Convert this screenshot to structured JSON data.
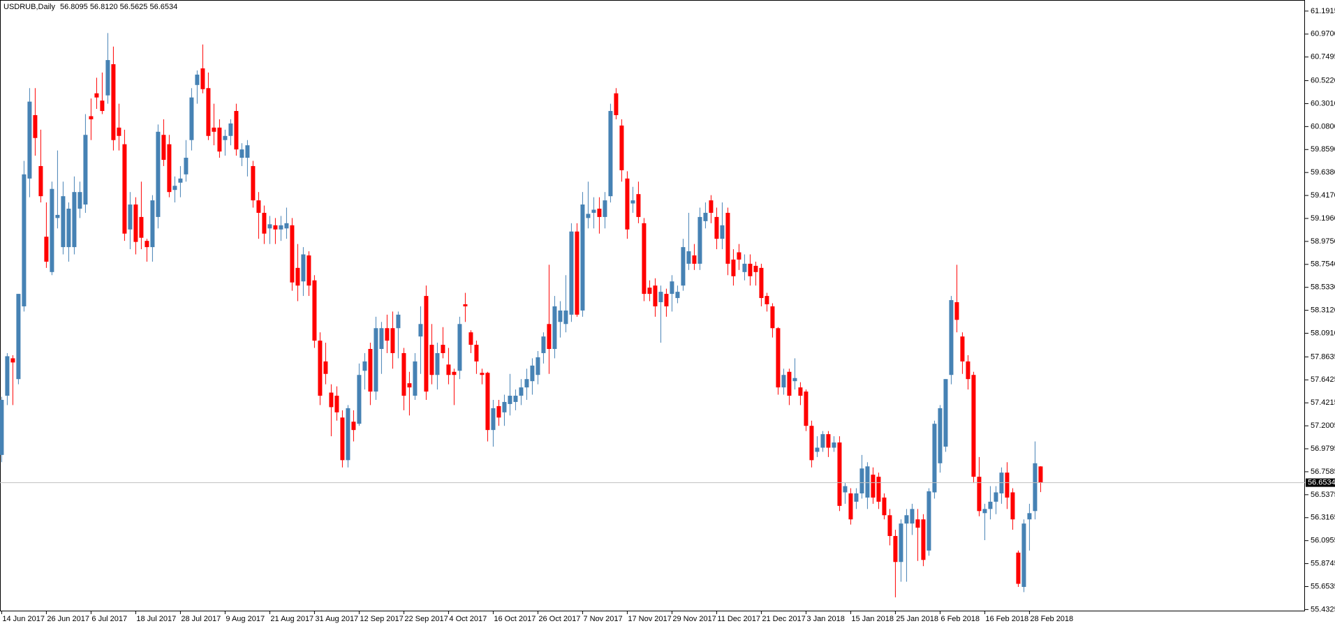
{
  "chart_data": {
    "type": "candlestick",
    "title": "USDRUB,Daily",
    "header": "56.8095 56.8120 56.5625 56.6534",
    "up_color": "#4682b4",
    "down_color": "#ff0000",
    "last_price": 56.6534,
    "last_price_color": "#c0c0c0",
    "ylim": [
      55.415,
      61.298
    ],
    "yticks": [
      61.1915,
      {
        "value": 60.97,
        "label": "60.9700"
      },
      60.7495,
      {
        "value": 60.522,
        "label": "60.5220"
      },
      {
        "value": 60.301,
        "label": "60.3010"
      },
      {
        "value": 60.08,
        "label": "60.0800"
      },
      {
        "value": 59.859,
        "label": "59.8590"
      },
      {
        "value": 59.638,
        "label": "59.6380"
      },
      {
        "value": 59.417,
        "label": "59.4170"
      },
      {
        "value": 59.196,
        "label": "59.1960"
      },
      {
        "value": 58.975,
        "label": "58.9750"
      },
      {
        "value": 58.754,
        "label": "58.7540"
      },
      {
        "value": 58.533,
        "label": "58.5330"
      },
      {
        "value": 58.312,
        "label": "58.3120"
      },
      {
        "value": 58.091,
        "label": "58.0910"
      },
      57.8635,
      57.6425,
      57.4215,
      57.2005,
      56.9795,
      56.7585,
      56.5375,
      56.3165,
      56.0955,
      55.8745,
      55.6535,
      55.4325
    ],
    "categories": [
      "14 Jun 2017",
      null,
      null,
      null,
      null,
      null,
      null,
      null,
      "26 Jun 2017",
      null,
      null,
      null,
      null,
      null,
      null,
      null,
      "6 Jul 2017",
      null,
      null,
      null,
      null,
      null,
      null,
      null,
      "18 Jul 2017",
      null,
      null,
      null,
      null,
      null,
      null,
      null,
      "28 Jul 2017",
      null,
      null,
      null,
      null,
      null,
      null,
      null,
      "9 Aug 2017",
      null,
      null,
      null,
      null,
      null,
      null,
      null,
      "21 Aug 2017",
      null,
      null,
      null,
      null,
      null,
      null,
      null,
      "31 Aug 2017",
      null,
      null,
      null,
      null,
      null,
      null,
      null,
      "12 Sep 2017",
      null,
      null,
      null,
      null,
      null,
      null,
      null,
      "22 Sep 2017",
      null,
      null,
      null,
      null,
      null,
      null,
      null,
      "4 Oct 2017",
      null,
      null,
      null,
      null,
      null,
      null,
      null,
      "16 Oct 2017",
      null,
      null,
      null,
      null,
      null,
      null,
      null,
      "26 Oct 2017",
      null,
      null,
      null,
      null,
      null,
      null,
      null,
      "7 Nov 2017",
      null,
      null,
      null,
      null,
      null,
      null,
      null,
      "17 Nov 2017",
      null,
      null,
      null,
      null,
      null,
      null,
      null,
      "29 Nov 2017",
      null,
      null,
      null,
      null,
      null,
      null,
      null,
      "11 Dec 2017",
      null,
      null,
      null,
      null,
      null,
      null,
      null,
      "21 Dec 2017",
      null,
      null,
      null,
      null,
      null,
      null,
      null,
      "3 Jan 2018",
      null,
      null,
      null,
      null,
      null,
      null,
      null,
      "15 Jan 2018",
      null,
      null,
      null,
      null,
      null,
      null,
      null,
      "25 Jan 2018",
      null,
      null,
      null,
      null,
      null,
      null,
      null,
      "6 Feb 2018",
      null,
      null,
      null,
      null,
      null,
      null,
      null,
      "16 Feb 2018",
      null,
      null,
      null,
      null,
      null,
      null,
      null,
      "28 Feb 2018",
      null,
      null
    ],
    "ohlc": [
      [
        56.92,
        57.48,
        56.85,
        57.45
      ],
      [
        57.49,
        57.9,
        57.4,
        57.87
      ],
      [
        57.85,
        57.88,
        57.4,
        57.81
      ],
      [
        57.65,
        58.47,
        57.6,
        58.47
      ],
      [
        58.35,
        59.75,
        58.3,
        59.62
      ],
      [
        59.58,
        60.45,
        59.4,
        60.32
      ],
      [
        60.19,
        60.45,
        59.8,
        59.97
      ],
      [
        59.7,
        60.05,
        59.35,
        59.41
      ],
      [
        59.02,
        59.35,
        58.72,
        58.78
      ],
      [
        58.68,
        59.55,
        58.65,
        59.48
      ],
      [
        59.2,
        59.85,
        59.1,
        59.23
      ],
      [
        58.92,
        59.55,
        58.85,
        59.41
      ],
      [
        58.92,
        59.35,
        58.78,
        59.29
      ],
      [
        58.92,
        59.6,
        58.85,
        59.45
      ],
      [
        59.29,
        59.55,
        59.2,
        59.45
      ],
      [
        59.33,
        60.2,
        59.25,
        60.0
      ],
      [
        60.18,
        60.35,
        59.95,
        60.15
      ],
      [
        60.4,
        60.55,
        60.25,
        60.36
      ],
      [
        60.33,
        60.6,
        60.2,
        60.23
      ],
      [
        60.38,
        60.98,
        60.3,
        60.72
      ],
      [
        60.68,
        60.85,
        59.85,
        59.95
      ],
      [
        60.07,
        60.3,
        59.85,
        59.99
      ],
      [
        59.91,
        60.05,
        58.98,
        59.05
      ],
      [
        59.09,
        59.45,
        58.9,
        59.33
      ],
      [
        59.33,
        59.4,
        58.85,
        58.97
      ],
      [
        59.21,
        59.55,
        58.9,
        59.01
      ],
      [
        58.98,
        59.0,
        58.78,
        58.92
      ],
      [
        58.92,
        59.42,
        58.78,
        59.37
      ],
      [
        59.21,
        60.1,
        59.1,
        60.03
      ],
      [
        60.0,
        60.15,
        59.7,
        59.76
      ],
      [
        59.91,
        60.0,
        59.4,
        59.45
      ],
      [
        59.47,
        59.6,
        59.35,
        59.51
      ],
      [
        59.54,
        59.7,
        59.4,
        59.58
      ],
      [
        59.62,
        59.95,
        59.55,
        59.78
      ],
      [
        59.95,
        60.45,
        59.85,
        60.36
      ],
      [
        60.48,
        60.62,
        60.3,
        60.58
      ],
      [
        60.64,
        60.87,
        60.4,
        60.44
      ],
      [
        60.45,
        60.6,
        59.95,
        59.99
      ],
      [
        60.07,
        60.3,
        59.9,
        60.03
      ],
      [
        60.07,
        60.15,
        59.78,
        59.84
      ],
      [
        59.95,
        60.05,
        59.8,
        59.99
      ],
      [
        59.99,
        60.15,
        59.9,
        60.11
      ],
      [
        60.23,
        60.3,
        59.8,
        59.86
      ],
      [
        59.78,
        59.92,
        59.7,
        59.86
      ],
      [
        59.78,
        59.95,
        59.6,
        59.9
      ],
      [
        59.7,
        59.75,
        59.3,
        59.37
      ],
      [
        59.37,
        59.45,
        59.0,
        59.25
      ],
      [
        59.25,
        59.32,
        58.95,
        59.05
      ],
      [
        59.1,
        59.22,
        58.95,
        59.14
      ],
      [
        59.13,
        59.2,
        58.95,
        59.09
      ],
      [
        59.09,
        59.22,
        58.98,
        59.13
      ],
      [
        59.1,
        59.3,
        59.0,
        59.15
      ],
      [
        59.13,
        59.2,
        58.5,
        58.58
      ],
      [
        58.72,
        58.95,
        58.4,
        58.55
      ],
      [
        58.59,
        58.92,
        58.45,
        58.85
      ],
      [
        58.84,
        58.88,
        58.45,
        58.55
      ],
      [
        58.6,
        58.65,
        57.95,
        58.02
      ],
      [
        58.02,
        58.1,
        57.4,
        57.49
      ],
      [
        57.82,
        58.0,
        57.6,
        57.7
      ],
      [
        57.52,
        57.6,
        57.1,
        57.38
      ],
      [
        57.49,
        57.58,
        57.25,
        57.33
      ],
      [
        57.28,
        57.35,
        56.8,
        56.87
      ],
      [
        56.87,
        57.4,
        56.8,
        57.37
      ],
      [
        57.24,
        57.35,
        57.05,
        57.16
      ],
      [
        57.22,
        57.8,
        57.2,
        57.69
      ],
      [
        57.73,
        57.9,
        57.55,
        57.82
      ],
      [
        57.94,
        58.0,
        57.4,
        57.53
      ],
      [
        57.53,
        58.25,
        57.45,
        58.14
      ],
      [
        57.94,
        58.2,
        57.7,
        58.14
      ],
      [
        58.14,
        58.27,
        57.9,
        58.02
      ],
      [
        58.14,
        58.3,
        57.75,
        57.9
      ],
      [
        58.14,
        58.3,
        57.85,
        58.27
      ],
      [
        57.9,
        57.95,
        57.35,
        57.49
      ],
      [
        57.61,
        57.72,
        57.3,
        57.57
      ],
      [
        57.49,
        57.9,
        57.45,
        57.82
      ],
      [
        58.06,
        58.35,
        57.7,
        58.18
      ],
      [
        58.45,
        58.55,
        57.45,
        57.53
      ],
      [
        57.98,
        58.18,
        57.6,
        57.69
      ],
      [
        57.69,
        58.0,
        57.55,
        57.9
      ],
      [
        57.98,
        58.15,
        57.85,
        57.9
      ],
      [
        57.79,
        57.95,
        57.6,
        57.69
      ],
      [
        57.72,
        57.75,
        57.4,
        57.69
      ],
      [
        57.73,
        58.25,
        57.65,
        58.18
      ],
      [
        58.37,
        58.48,
        58.2,
        58.35
      ],
      [
        58.1,
        58.12,
        57.9,
        57.98
      ],
      [
        57.98,
        58.02,
        57.7,
        57.82
      ],
      [
        57.71,
        57.75,
        57.6,
        57.69
      ],
      [
        57.71,
        57.72,
        57.05,
        57.16
      ],
      [
        57.16,
        57.45,
        57.0,
        57.37
      ],
      [
        57.39,
        57.45,
        57.2,
        57.28
      ],
      [
        57.33,
        57.5,
        57.2,
        57.43
      ],
      [
        57.41,
        57.7,
        57.3,
        57.49
      ],
      [
        57.43,
        57.55,
        57.35,
        57.49
      ],
      [
        57.49,
        57.65,
        57.4,
        57.57
      ],
      [
        57.57,
        57.75,
        57.45,
        57.65
      ],
      [
        57.63,
        57.85,
        57.5,
        57.78
      ],
      [
        57.69,
        57.92,
        57.6,
        57.86
      ],
      [
        57.9,
        58.1,
        57.8,
        58.06
      ],
      [
        58.18,
        58.75,
        57.7,
        57.94
      ],
      [
        57.94,
        58.45,
        57.85,
        58.35
      ],
      [
        58.2,
        58.4,
        58.05,
        58.31
      ],
      [
        58.18,
        58.65,
        58.1,
        58.31
      ],
      [
        58.27,
        59.15,
        58.2,
        59.07
      ],
      [
        59.07,
        59.15,
        58.25,
        58.27
      ],
      [
        58.31,
        59.45,
        58.25,
        59.33
      ],
      [
        59.2,
        59.55,
        59.1,
        59.24
      ],
      [
        59.25,
        59.4,
        59.1,
        59.28
      ],
      [
        59.29,
        59.4,
        59.05,
        59.21
      ],
      [
        59.21,
        59.45,
        59.1,
        59.37
      ],
      [
        59.41,
        60.3,
        59.35,
        60.23
      ],
      [
        60.4,
        60.45,
        60.15,
        60.19
      ],
      [
        60.09,
        60.15,
        59.55,
        59.66
      ],
      [
        59.58,
        59.65,
        59.0,
        59.09
      ],
      [
        59.34,
        59.5,
        59.25,
        59.37
      ],
      [
        59.43,
        59.55,
        59.15,
        59.21
      ],
      [
        59.15,
        59.2,
        58.4,
        58.47
      ],
      [
        58.53,
        58.6,
        58.4,
        58.47
      ],
      [
        58.55,
        58.62,
        58.25,
        58.35
      ],
      [
        58.39,
        58.55,
        58.0,
        58.49
      ],
      [
        58.47,
        58.52,
        58.25,
        58.35
      ],
      [
        58.47,
        58.65,
        58.3,
        58.59
      ],
      [
        58.43,
        58.55,
        58.38,
        58.49
      ],
      [
        58.55,
        59.0,
        58.5,
        58.92
      ],
      [
        58.76,
        59.25,
        58.7,
        58.88
      ],
      [
        58.84,
        58.95,
        58.7,
        58.76
      ],
      [
        58.76,
        59.3,
        58.7,
        59.21
      ],
      [
        59.17,
        59.35,
        59.1,
        59.25
      ],
      [
        59.37,
        59.42,
        59.15,
        59.25
      ],
      [
        59.21,
        59.3,
        58.9,
        59.0
      ],
      [
        59.0,
        59.35,
        58.9,
        59.13
      ],
      [
        59.25,
        59.3,
        58.65,
        58.76
      ],
      [
        58.8,
        58.9,
        58.55,
        58.64
      ],
      [
        58.87,
        58.95,
        58.7,
        58.8
      ],
      [
        58.68,
        58.85,
        58.6,
        58.76
      ],
      [
        58.76,
        58.85,
        58.55,
        58.64
      ],
      [
        58.74,
        58.78,
        58.55,
        58.68
      ],
      [
        58.72,
        58.76,
        58.35,
        58.43
      ],
      [
        58.45,
        58.48,
        58.3,
        58.37
      ],
      [
        58.35,
        58.38,
        58.05,
        58.14
      ],
      [
        58.14,
        58.15,
        57.5,
        57.57
      ],
      [
        57.57,
        57.75,
        57.5,
        57.69
      ],
      [
        57.72,
        57.75,
        57.4,
        57.49
      ],
      [
        57.63,
        57.85,
        57.55,
        57.66
      ],
      [
        57.57,
        57.62,
        57.4,
        57.49
      ],
      [
        57.53,
        57.55,
        57.15,
        57.2
      ],
      [
        57.2,
        57.25,
        56.8,
        56.87
      ],
      [
        56.95,
        57.1,
        56.9,
        56.99
      ],
      [
        56.99,
        57.15,
        56.95,
        57.12
      ],
      [
        57.12,
        57.15,
        56.9,
        56.99
      ],
      [
        56.99,
        57.1,
        56.95,
        57.04
      ],
      [
        57.04,
        57.1,
        56.38,
        56.43
      ],
      [
        56.56,
        56.65,
        56.45,
        56.62
      ],
      [
        56.55,
        56.6,
        56.25,
        56.3
      ],
      [
        56.47,
        56.6,
        56.4,
        56.55
      ],
      [
        56.55,
        56.92,
        56.5,
        56.79
      ],
      [
        56.51,
        56.85,
        56.4,
        56.81
      ],
      [
        56.73,
        56.8,
        56.45,
        56.51
      ],
      [
        56.71,
        56.75,
        56.4,
        56.47
      ],
      [
        56.51,
        56.55,
        56.3,
        56.34
      ],
      [
        56.34,
        56.4,
        56.05,
        56.14
      ],
      [
        56.14,
        56.2,
        55.55,
        55.89
      ],
      [
        55.89,
        56.3,
        55.7,
        56.26
      ],
      [
        56.26,
        56.4,
        55.7,
        56.34
      ],
      [
        56.26,
        56.45,
        56.15,
        56.4
      ],
      [
        56.3,
        56.4,
        55.9,
        56.22
      ],
      [
        56.3,
        56.35,
        55.85,
        55.91
      ],
      [
        56.0,
        56.6,
        55.95,
        56.57
      ],
      [
        56.56,
        57.25,
        56.5,
        57.22
      ],
      [
        56.84,
        57.4,
        56.75,
        57.37
      ],
      [
        57.0,
        57.65,
        56.95,
        57.65
      ],
      [
        57.69,
        58.45,
        57.6,
        58.41
      ],
      [
        58.39,
        58.75,
        58.1,
        58.22
      ],
      [
        58.06,
        58.1,
        57.7,
        57.82
      ],
      [
        57.82,
        57.88,
        57.55,
        57.65
      ],
      [
        57.69,
        57.72,
        56.65,
        56.71
      ],
      [
        56.71,
        56.9,
        56.33,
        56.38
      ],
      [
        56.36,
        56.45,
        56.1,
        56.4
      ],
      [
        56.4,
        56.62,
        56.3,
        56.47
      ],
      [
        56.47,
        56.62,
        56.35,
        56.56
      ],
      [
        56.55,
        56.8,
        56.45,
        56.75
      ],
      [
        56.75,
        56.85,
        56.4,
        56.51
      ],
      [
        56.56,
        56.6,
        56.2,
        56.3
      ],
      [
        55.98,
        56.0,
        55.65,
        55.68
      ],
      [
        55.65,
        56.3,
        55.6,
        56.26
      ],
      [
        56.3,
        56.45,
        56.0,
        56.36
      ],
      [
        56.38,
        57.05,
        56.3,
        56.84
      ],
      [
        56.8095,
        56.812,
        56.5625,
        56.6534
      ]
    ]
  }
}
